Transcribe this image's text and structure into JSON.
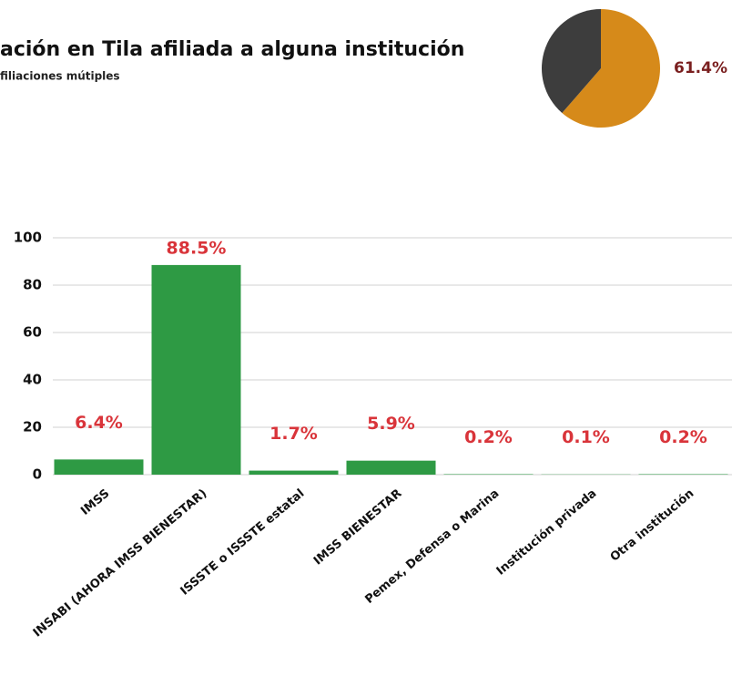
{
  "chart_data": [
    {
      "type": "pie",
      "title": "ación en Tila afiliada a alguna institución",
      "subtitle": "filiaciones mútiples",
      "values": [
        61.4,
        38.6
      ],
      "value_labels": [
        "61.4%",
        null
      ],
      "colors": [
        "#d68a1a",
        "#3d3d3d"
      ]
    },
    {
      "type": "bar",
      "categories": [
        "IMSS",
        "INSABI (AHORA IMSS BIENESTAR)",
        "ISSSTE o ISSSTE estatal",
        "IMSS BIENESTAR",
        "Pemex, Defensa o Marina",
        "Institución privada",
        "Otra institución"
      ],
      "values": [
        6.4,
        88.5,
        1.7,
        5.9,
        0.2,
        0.1,
        0.2
      ],
      "value_labels": [
        "6.4%",
        "88.5%",
        "1.7%",
        "5.9%",
        "0.2%",
        "0.1%",
        "0.2%"
      ],
      "color": "#2e9a44",
      "label_color": "#d9343a",
      "ylim": [
        0,
        100
      ],
      "yticks": [
        0,
        20,
        40,
        60,
        80,
        100
      ],
      "grid": true
    }
  ]
}
